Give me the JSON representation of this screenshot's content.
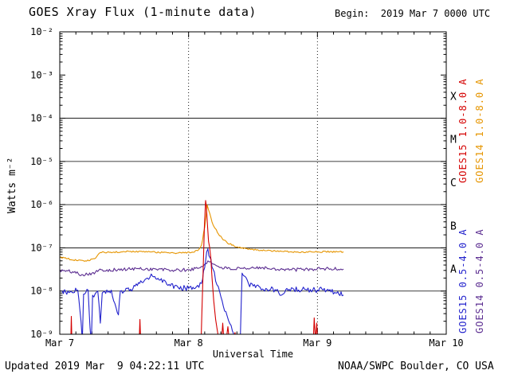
{
  "header": {
    "title": "GOES Xray Flux (1-minute data)",
    "begin_label": "Begin:  2019 Mar 7 0000 UTC"
  },
  "footer": {
    "updated": "Updated 2019 Mar  9 04:22:11 UTC",
    "source": "NOAA/SWPC Boulder, CO USA"
  },
  "chart_data": {
    "type": "line",
    "title": "GOES Xray Flux (1-minute data)",
    "xlabel": "Universal Time",
    "ylabel": "Watts m⁻²",
    "x_unit": "days since 2019 Mar 7 0000 UTC",
    "x_range_days": [
      0,
      3
    ],
    "y_log_range": [
      -9,
      -2
    ],
    "y_scale": "log",
    "grid": "horizontal solid at flare-class boundaries, vertical dotted at day boundaries",
    "x_ticks": [
      {
        "day": 0,
        "label": "Mar 7"
      },
      {
        "day": 1,
        "label": "Mar 8"
      },
      {
        "day": 2,
        "label": "Mar 9"
      },
      {
        "day": 3,
        "label": "Mar 10"
      }
    ],
    "y_ticks": [
      {
        "exp": -2,
        "label": "10⁻²"
      },
      {
        "exp": -3,
        "label": "10⁻³"
      },
      {
        "exp": -4,
        "label": "10⁻⁴"
      },
      {
        "exp": -5,
        "label": "10⁻⁵"
      },
      {
        "exp": -6,
        "label": "10⁻⁶"
      },
      {
        "exp": -7,
        "label": "10⁻⁷"
      },
      {
        "exp": -8,
        "label": "10⁻⁸"
      },
      {
        "exp": -9,
        "label": "10⁻⁹"
      }
    ],
    "hgrid_exponents": [
      -4,
      -5,
      -6,
      -7,
      -8
    ],
    "vgrid_days": [
      1,
      2
    ],
    "flare_classes": [
      {
        "label": "X",
        "log_mid": -3.5
      },
      {
        "label": "M",
        "log_mid": -4.5
      },
      {
        "label": "C",
        "log_mid": -5.5
      },
      {
        "label": "B",
        "log_mid": -6.5
      },
      {
        "label": "A",
        "log_mid": -7.5
      }
    ],
    "right_labels": [
      {
        "text": "GOES15 1.0-8.0 A",
        "color": "#d40000"
      },
      {
        "text": "GOES14 1.0-8.0 A",
        "color": "#e69500"
      },
      {
        "text": "GOES15 0.5-4.0 A",
        "color": "#2222cc"
      },
      {
        "text": "GOES14 0.5-4.0 A",
        "color": "#5c2e91"
      }
    ],
    "series": [
      {
        "id": "goes15-long",
        "name": "GOES15 1.0-8.0 A",
        "color": "#d40000",
        "noise": 0.015,
        "segments": [
          [
            [
              0.085,
              5e-10
            ],
            [
              0.09,
              2.6e-09
            ],
            [
              0.095,
              5e-10
            ]
          ],
          [
            [
              0.615,
              5e-10
            ],
            [
              0.622,
              2.2e-09
            ],
            [
              0.63,
              5e-10
            ]
          ],
          [
            [
              1.095,
              4e-10
            ],
            [
              1.103,
              3e-09
            ],
            [
              1.112,
              2.5e-08
            ],
            [
              1.122,
              2.8e-07
            ],
            [
              1.132,
              1.25e-06
            ],
            [
              1.138,
              9e-07
            ],
            [
              1.146,
              3.5e-07
            ],
            [
              1.155,
              1.4e-07
            ],
            [
              1.163,
              1.05e-07
            ],
            [
              1.172,
              6e-08
            ],
            [
              1.182,
              2e-08
            ],
            [
              1.195,
              6e-09
            ],
            [
              1.21,
              2.2e-09
            ],
            [
              1.23,
              9e-10
            ],
            [
              1.25,
              4e-10
            ],
            [
              1.265,
              1.8e-09
            ],
            [
              1.28,
              4e-10
            ],
            [
              1.305,
              1.5e-09
            ],
            [
              1.325,
              3.5e-10
            ],
            [
              1.36,
              1.1e-09
            ],
            [
              1.39,
              3e-10
            ],
            [
              1.43,
              8e-10
            ],
            [
              1.455,
              3e-10
            ]
          ],
          [
            [
              1.965,
              4e-10
            ],
            [
              1.975,
              2.4e-09
            ],
            [
              1.985,
              7e-10
            ],
            [
              1.995,
              1.8e-09
            ],
            [
              2.005,
              4e-10
            ]
          ]
        ]
      },
      {
        "id": "goes14-long",
        "name": "GOES14 1.0-8.0 A",
        "color": "#e69500",
        "noise": 0.018,
        "segments": [
          [
            [
              0.0,
              6e-08
            ],
            [
              0.06,
              5.6e-08
            ],
            [
              0.13,
              5.1e-08
            ],
            [
              0.2,
              5e-08
            ],
            [
              0.27,
              5.6e-08
            ],
            [
              0.315,
              7.8e-08
            ],
            [
              0.42,
              8e-08
            ],
            [
              0.55,
              8.3e-08
            ],
            [
              0.68,
              8e-08
            ],
            [
              0.8,
              7.8e-08
            ],
            [
              0.92,
              7.6e-08
            ],
            [
              1.02,
              7.8e-08
            ],
            [
              1.07,
              8.6e-08
            ],
            [
              1.1,
              1.15e-07
            ],
            [
              1.125,
              3e-07
            ],
            [
              1.145,
              9.8e-07
            ],
            [
              1.165,
              6.2e-07
            ],
            [
              1.19,
              3.4e-07
            ],
            [
              1.24,
              1.9e-07
            ],
            [
              1.3,
              1.3e-07
            ],
            [
              1.38,
              1.05e-07
            ],
            [
              1.48,
              9.2e-08
            ],
            [
              1.6,
              8.6e-08
            ],
            [
              1.72,
              8.3e-08
            ],
            [
              1.85,
              8e-08
            ],
            [
              1.98,
              8e-08
            ],
            [
              2.1,
              8.2e-08
            ],
            [
              2.2,
              8e-08
            ]
          ]
        ]
      },
      {
        "id": "goes15-short",
        "name": "GOES15 0.5-4.0 A",
        "color": "#2222cc",
        "noise": 0.065,
        "segments": [
          [
            [
              0.02,
              1e-08
            ],
            [
              0.08,
              9.5e-09
            ],
            [
              0.14,
              1.05e-08
            ],
            [
              0.165,
              2e-09
            ],
            [
              0.175,
              7e-10
            ],
            [
              0.185,
              8.5e-09
            ],
            [
              0.22,
              1.05e-08
            ],
            [
              0.235,
              1.4e-09
            ],
            [
              0.245,
              6e-10
            ],
            [
              0.255,
              8e-09
            ],
            [
              0.295,
              1e-08
            ],
            [
              0.315,
              1.8e-09
            ],
            [
              0.33,
              9e-09
            ],
            [
              0.4,
              1.05e-08
            ],
            [
              0.455,
              2.8e-09
            ],
            [
              0.47,
              1e-08
            ],
            [
              0.55,
              1.1e-08
            ],
            [
              0.62,
              1.5e-08
            ],
            [
              0.68,
              2e-08
            ],
            [
              0.72,
              2.2e-08
            ],
            [
              0.78,
              1.8e-08
            ],
            [
              0.84,
              1.35e-08
            ],
            [
              0.92,
              1.2e-08
            ],
            [
              1.0,
              1.15e-08
            ],
            [
              1.06,
              1.25e-08
            ],
            [
              1.1,
              1.5e-08
            ],
            [
              1.125,
              3.5e-08
            ],
            [
              1.14,
              8e-08
            ],
            [
              1.15,
              9.5e-08
            ],
            [
              1.165,
              6e-08
            ],
            [
              1.19,
              3.2e-08
            ],
            [
              1.22,
              1.4e-08
            ],
            [
              1.26,
              6e-09
            ],
            [
              1.3,
              2.6e-09
            ],
            [
              1.34,
              1.2e-09
            ],
            [
              1.385,
              5e-10
            ]
          ],
          [
            [
              1.4,
              5e-10
            ],
            [
              1.415,
              2.6e-08
            ],
            [
              1.435,
              2.2e-08
            ],
            [
              1.465,
              1.5e-08
            ],
            [
              1.52,
              1.2e-08
            ],
            [
              1.6,
              1.15e-08
            ],
            [
              1.68,
              1.05e-08
            ],
            [
              1.72,
              8e-09
            ],
            [
              1.78,
              1.1e-08
            ],
            [
              1.9,
              1.1e-08
            ],
            [
              2.0,
              1.05e-08
            ],
            [
              2.08,
              1.1e-08
            ],
            [
              2.15,
              9e-09
            ],
            [
              2.2,
              8e-09
            ]
          ]
        ]
      },
      {
        "id": "goes14-short",
        "name": "GOES14 0.5-4.0 A",
        "color": "#5c2e91",
        "noise": 0.04,
        "segments": [
          [
            [
              0.0,
              3e-08
            ],
            [
              0.1,
              2.8e-08
            ],
            [
              0.17,
              2.4e-08
            ],
            [
              0.25,
              2.6e-08
            ],
            [
              0.33,
              3.1e-08
            ],
            [
              0.45,
              3.1e-08
            ],
            [
              0.6,
              3.3e-08
            ],
            [
              0.75,
              3.2e-08
            ],
            [
              0.9,
              3e-08
            ],
            [
              1.0,
              3.1e-08
            ],
            [
              1.08,
              3.4e-08
            ],
            [
              1.12,
              4e-08
            ],
            [
              1.15,
              5e-08
            ],
            [
              1.18,
              4.4e-08
            ],
            [
              1.22,
              3.8e-08
            ],
            [
              1.3,
              3.3e-08
            ],
            [
              1.45,
              3.2e-08
            ],
            [
              1.55,
              3.6e-08
            ],
            [
              1.65,
              3.3e-08
            ],
            [
              1.8,
              3.1e-08
            ],
            [
              1.95,
              3.2e-08
            ],
            [
              2.05,
              3.3e-08
            ],
            [
              2.2,
              3.2e-08
            ]
          ]
        ]
      }
    ]
  }
}
